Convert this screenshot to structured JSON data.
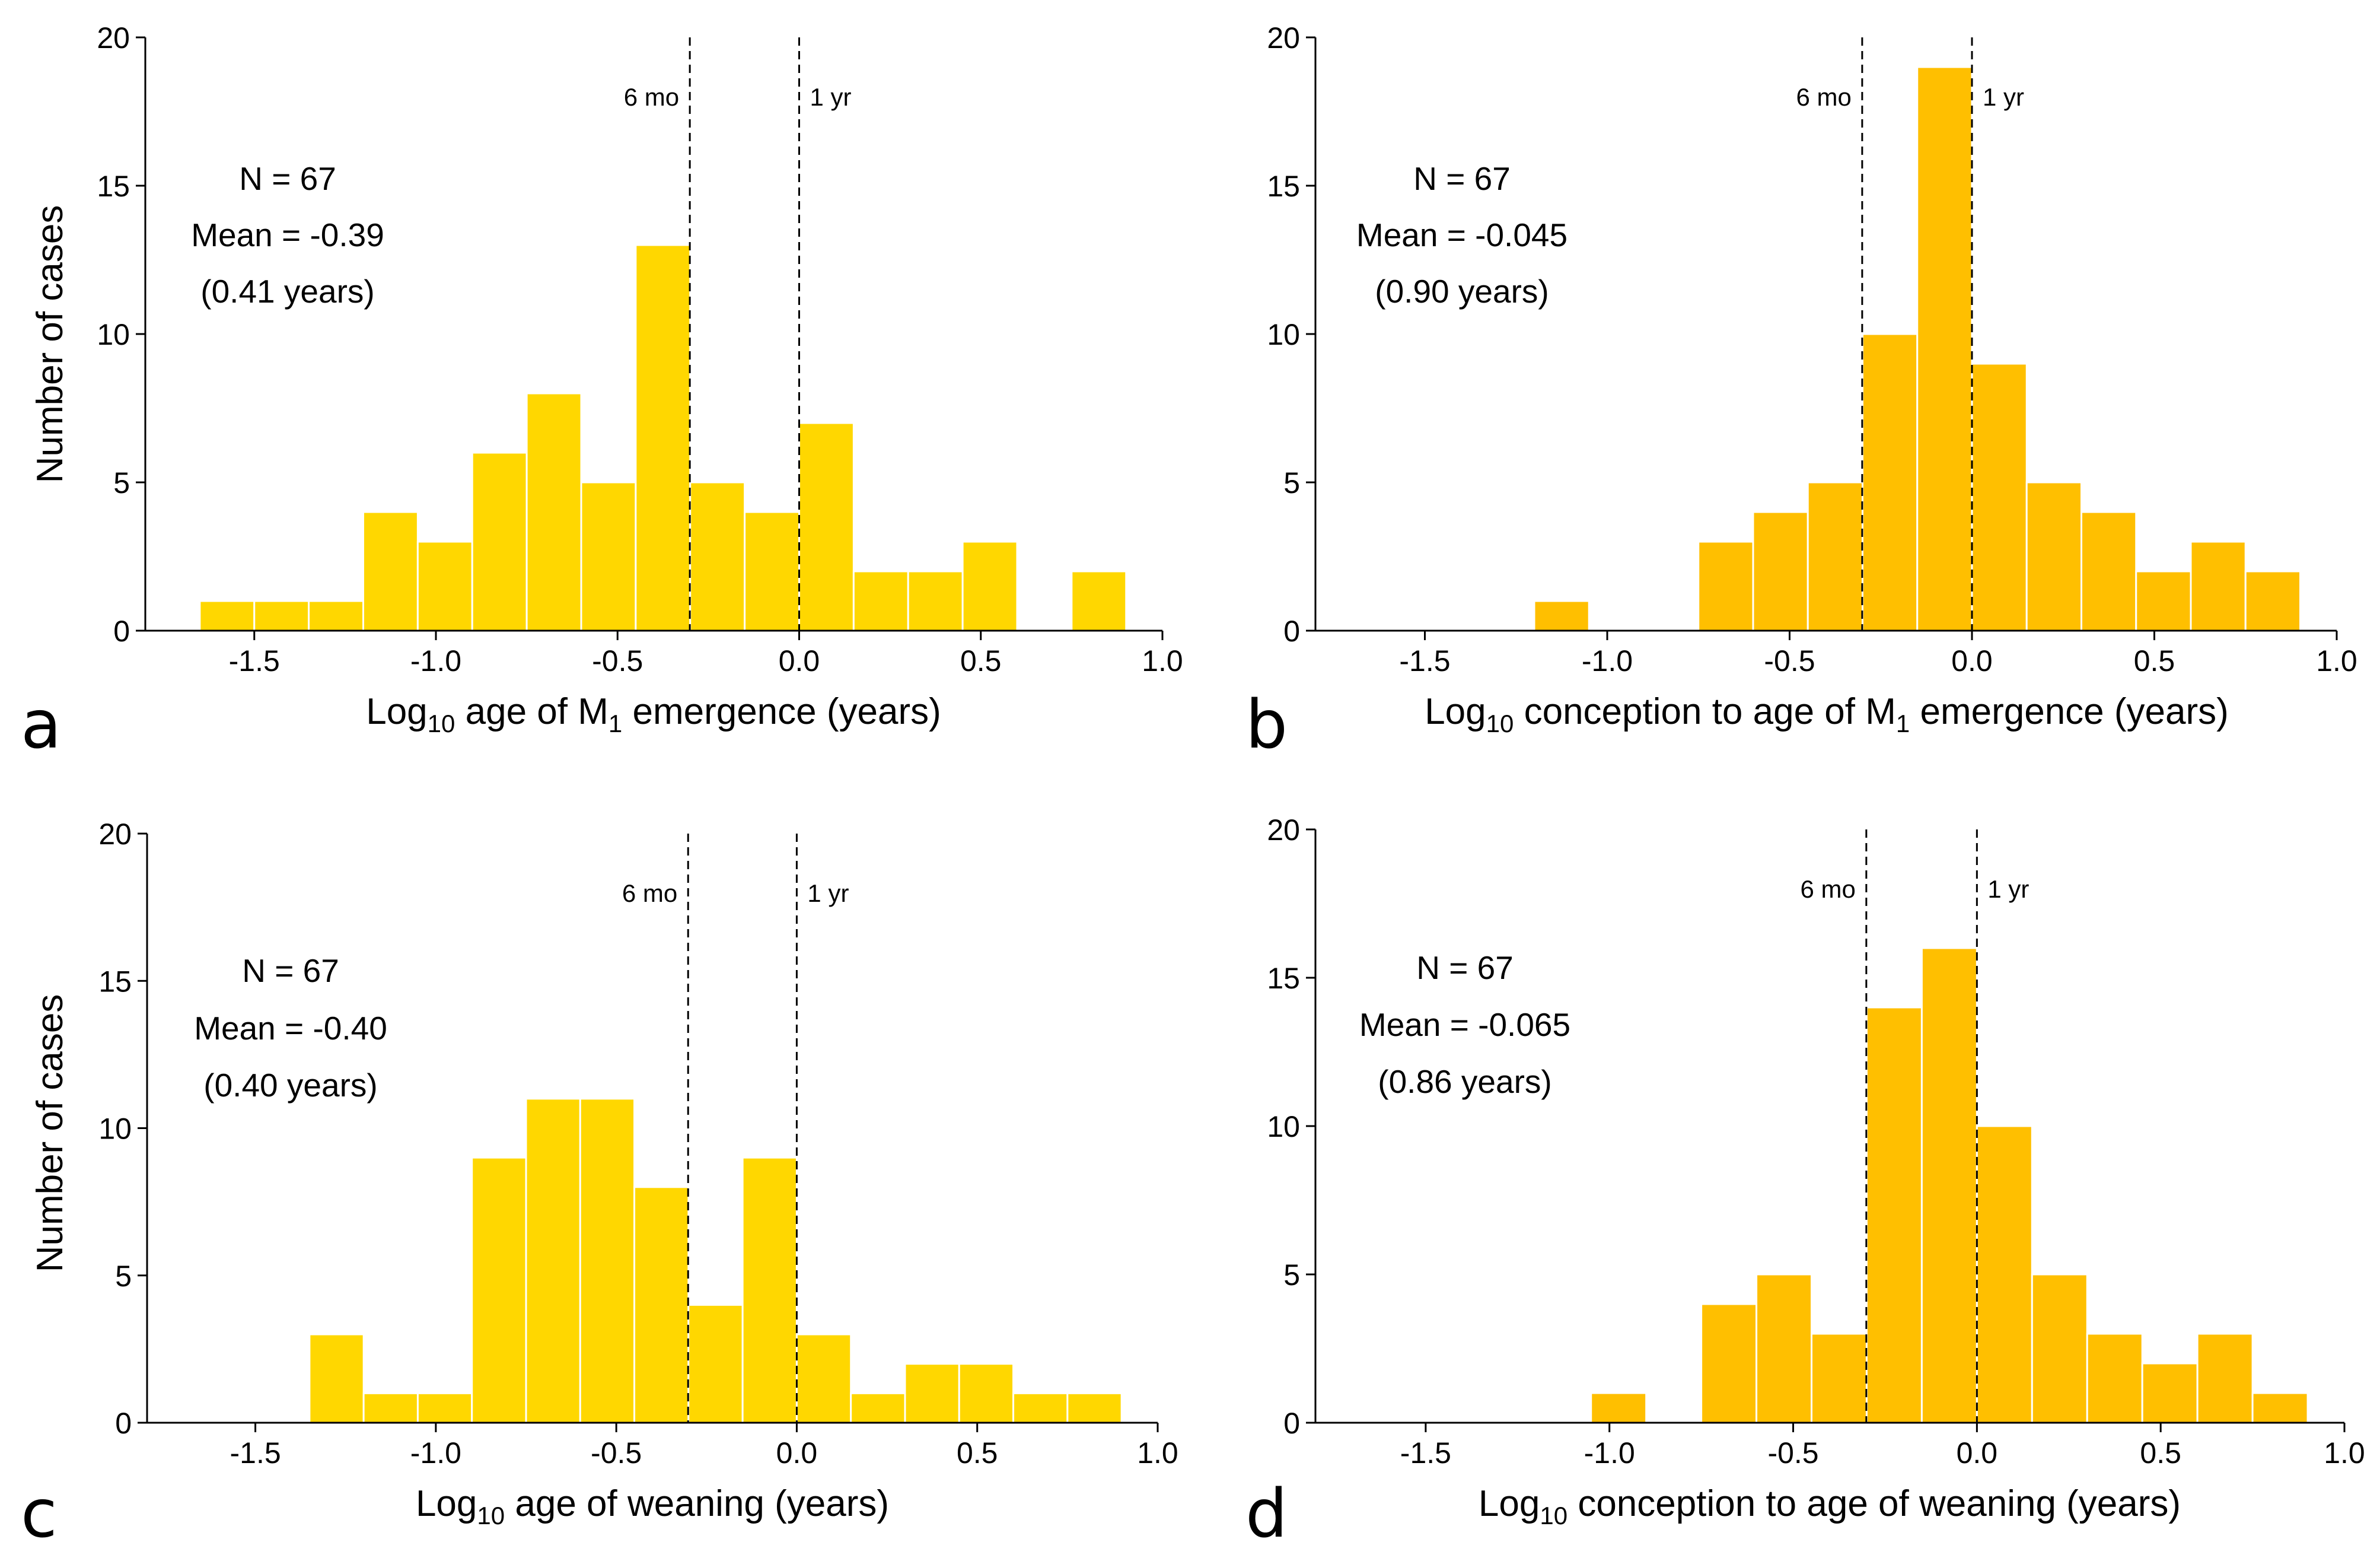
{
  "chart_data": [
    {
      "panel": "a",
      "type": "bar",
      "histogram": true,
      "ylabel": "Number of cases",
      "xlabel_main": "Log",
      "xlabel_sub": "10",
      "xlabel_rest": " age of M",
      "xlabel_sub2": "1",
      "xlabel_end": " emergence (years)",
      "xlim": [
        -1.8,
        1.0
      ],
      "ylim": [
        0,
        20
      ],
      "xticks": [
        -1.5,
        -1.0,
        -0.5,
        0.0,
        0.5,
        1.0
      ],
      "xtick_labels": [
        "-1.5",
        "-1.0",
        "-0.5",
        "0.0",
        "0.5",
        "1.0"
      ],
      "yticks": [
        0,
        5,
        10,
        15,
        20
      ],
      "ytick_labels": [
        "0",
        "5",
        "10",
        "15",
        "20"
      ],
      "bin_width": 0.15,
      "bin_start": -1.65,
      "values": [
        1,
        1,
        1,
        4,
        3,
        6,
        8,
        5,
        13,
        5,
        4,
        7,
        2,
        2,
        3,
        0,
        2
      ],
      "color": "#FFD700",
      "ref_lines": [
        {
          "x": -0.301,
          "label": "6 mo",
          "side": "left"
        },
        {
          "x": 0.0,
          "label": "1 yr",
          "side": "right"
        }
      ],
      "annotations": [
        "N = 67",
        "Mean = -0.39",
        "(0.41 years)"
      ]
    },
    {
      "panel": "b",
      "type": "bar",
      "histogram": true,
      "ylabel": "",
      "xlabel_main": "Log",
      "xlabel_sub": "10",
      "xlabel_rest": " conception to age of M",
      "xlabel_sub2": "1",
      "xlabel_end": " emergence (years)",
      "xlim": [
        -1.8,
        1.0
      ],
      "ylim": [
        0,
        20
      ],
      "xticks": [
        -1.5,
        -1.0,
        -0.5,
        0.0,
        0.5,
        1.0
      ],
      "xtick_labels": [
        "-1.5",
        "-1.0",
        "-0.5",
        "0.0",
        "0.5",
        "1.0"
      ],
      "yticks": [
        0,
        5,
        10,
        15,
        20
      ],
      "ytick_labels": [
        "0",
        "5",
        "10",
        "15",
        "20"
      ],
      "bin_width": 0.15,
      "bin_start": -1.2,
      "values": [
        1,
        0,
        0,
        3,
        4,
        5,
        10,
        19,
        9,
        5,
        4,
        2,
        3,
        2
      ],
      "color": "#FFBF00",
      "ref_lines": [
        {
          "x": -0.301,
          "label": "6 mo",
          "side": "left"
        },
        {
          "x": 0.0,
          "label": "1 yr",
          "side": "right"
        }
      ],
      "annotations": [
        "N = 67",
        "Mean = -0.045",
        "(0.90 years)"
      ]
    },
    {
      "panel": "c",
      "type": "bar",
      "histogram": true,
      "ylabel": "Number of cases",
      "xlabel_main": "Log",
      "xlabel_sub": "10",
      "xlabel_rest": " age of weaning (years)",
      "xlabel_sub2": "",
      "xlabel_end": "",
      "xlim": [
        -1.8,
        1.0
      ],
      "ylim": [
        0,
        20
      ],
      "xticks": [
        -1.5,
        -1.0,
        -0.5,
        0.0,
        0.5,
        1.0
      ],
      "xtick_labels": [
        "-1.5",
        "-1.0",
        "-0.5",
        "0.0",
        "0.5",
        "1.0"
      ],
      "yticks": [
        0,
        5,
        10,
        15,
        20
      ],
      "ytick_labels": [
        "0",
        "5",
        "10",
        "15",
        "20"
      ],
      "bin_width": 0.15,
      "bin_start": -1.35,
      "values": [
        3,
        1,
        1,
        9,
        11,
        11,
        8,
        4,
        9,
        3,
        1,
        2,
        2,
        1,
        1
      ],
      "color": "#FFD700",
      "ref_lines": [
        {
          "x": -0.301,
          "label": "6 mo",
          "side": "left"
        },
        {
          "x": 0.0,
          "label": "1 yr",
          "side": "right"
        }
      ],
      "annotations": [
        "N = 67",
        "Mean = -0.40",
        "(0.40 years)"
      ]
    },
    {
      "panel": "d",
      "type": "bar",
      "histogram": true,
      "ylabel": "",
      "xlabel_main": "Log",
      "xlabel_sub": "10",
      "xlabel_rest": " conception to age of weaning (years)",
      "xlabel_sub2": "",
      "xlabel_end": "",
      "xlim": [
        -1.8,
        1.0
      ],
      "ylim": [
        0,
        20
      ],
      "xticks": [
        -1.5,
        -1.0,
        -0.5,
        0.0,
        0.5,
        1.0
      ],
      "xtick_labels": [
        "-1.5",
        "-1.0",
        "-0.5",
        "0.0",
        "0.5",
        "1.0"
      ],
      "yticks": [
        0,
        5,
        10,
        15,
        20
      ],
      "ytick_labels": [
        "0",
        "5",
        "10",
        "15",
        "20"
      ],
      "bin_width": 0.15,
      "bin_start": -1.05,
      "values": [
        1,
        0,
        4,
        5,
        3,
        14,
        16,
        10,
        5,
        3,
        2,
        3,
        1
      ],
      "color": "#FFBF00",
      "ref_lines": [
        {
          "x": -0.301,
          "label": "6 mo",
          "side": "left"
        },
        {
          "x": 0.0,
          "label": "1 yr",
          "side": "right"
        }
      ],
      "annotations": [
        "N = 67",
        "Mean = -0.065",
        "(0.86 years)"
      ]
    }
  ]
}
